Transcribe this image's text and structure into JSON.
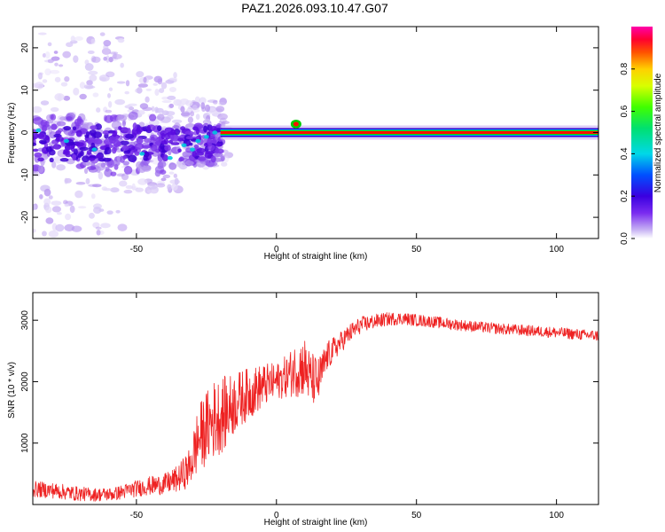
{
  "title": "PAZ1.2026.093.10.47.G07",
  "colors": {
    "snr_line": "#ee2222",
    "spectrum_band": "#ff1100",
    "band_outline": "#00cc00",
    "purple_dark": "#4a00d8",
    "purple_light": "#cdb8f4",
    "axis": "#000000"
  },
  "chart_data": [
    {
      "type": "heatmap",
      "name": "spectrogram",
      "title": "PAZ1.2026.093.10.47.G07",
      "xlabel": "Height of straight line (km)",
      "ylabel": "Frequency (Hz)",
      "xlim": [
        -87,
        115
      ],
      "ylim": [
        -25,
        25
      ],
      "xticks": [
        -50,
        0,
        50,
        100
      ],
      "yticks": [
        -20,
        -10,
        0,
        10,
        20
      ],
      "xtick_labels": [
        "-50",
        "0",
        "50",
        "100"
      ],
      "ytick_labels": [
        "-20",
        "-10",
        "0",
        "10",
        "20"
      ],
      "zlim": [
        0,
        1
      ],
      "features": [
        {
          "description": "coherent carrier near 0 Hz",
          "x_range": [
            -20,
            115
          ],
          "frequency_hz": 0,
          "amplitude": 1.0
        },
        {
          "description": "scattered multipath energy",
          "x_range": [
            -87,
            -20
          ],
          "frequency_range_hz": [
            -12,
            6
          ],
          "amplitude": 0.3
        },
        {
          "description": "weak diffuse energy",
          "x_range": [
            -87,
            -50
          ],
          "frequency_range_hz": [
            -25,
            25
          ],
          "amplitude": 0.05
        },
        {
          "description": "carrier bump",
          "x": 7,
          "frequency_hz": 2,
          "amplitude": 0.9
        }
      ],
      "colorbar": {
        "label": "Normalized spectral amplitude",
        "range": [
          0,
          1
        ],
        "ticks": [
          0.0,
          0.2,
          0.4,
          0.6,
          0.8
        ],
        "tick_labels": [
          "0.0",
          "0.2",
          "0.4",
          "0.6",
          "0.8"
        ]
      }
    },
    {
      "type": "line",
      "name": "snr",
      "xlabel": "Height of straight line (km)",
      "ylabel": "SNR (10 * v/v)",
      "xlim": [
        -87,
        115
      ],
      "ylim": [
        0,
        3450
      ],
      "xticks": [
        -50,
        0,
        50,
        100
      ],
      "yticks": [
        1000,
        2000,
        3000
      ],
      "xtick_labels": [
        "-50",
        "0",
        "50",
        "100"
      ],
      "ytick_labels": [
        "1000",
        "2000",
        "3000"
      ],
      "series": [
        {
          "name": "SNR",
          "x": [
            -87,
            -80,
            -72,
            -65,
            -58,
            -52,
            -46,
            -40,
            -35,
            -31,
            -28,
            -25,
            -22,
            -18,
            -15,
            -12,
            -8,
            -4,
            0,
            4,
            7,
            10,
            12,
            15,
            18,
            22,
            26,
            30,
            35,
            40,
            45,
            50,
            55,
            60,
            70,
            80,
            90,
            100,
            110,
            115
          ],
          "y": [
            250,
            230,
            180,
            160,
            170,
            240,
            300,
            330,
            420,
            600,
            1050,
            1250,
            1400,
            1500,
            1650,
            1750,
            1850,
            1950,
            2000,
            2100,
            2200,
            2250,
            2050,
            2000,
            2400,
            2600,
            2780,
            2920,
            2980,
            3020,
            3030,
            3000,
            2980,
            2950,
            2900,
            2860,
            2830,
            2800,
            2760,
            2750
          ],
          "noise_amplitude": [
            130,
            130,
            120,
            110,
            110,
            130,
            150,
            170,
            220,
            320,
            550,
            600,
            650,
            600,
            500,
            450,
            400,
            350,
            300,
            350,
            450,
            500,
            450,
            400,
            250,
            180,
            160,
            140,
            120,
            110,
            100,
            100,
            95,
            95,
            90,
            90,
            90,
            90,
            90,
            90
          ]
        }
      ]
    }
  ]
}
